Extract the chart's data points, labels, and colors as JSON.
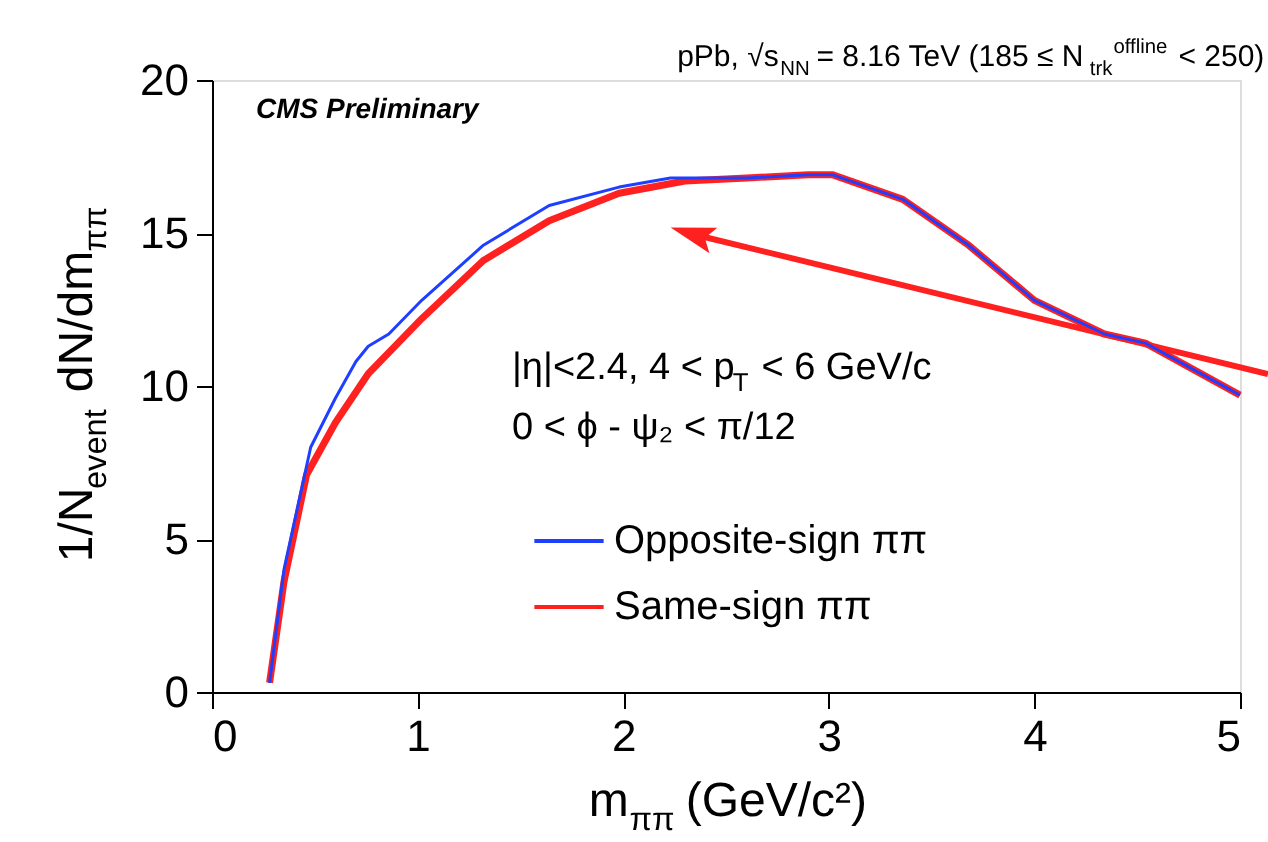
{
  "chart_data": {
    "type": "line",
    "title": "pPb, √s$_{NN}$ = 8.16 TeV (185 ≤ N$_{trk}$$^{offline}$ < 250)",
    "xlabel": "m$_{ππ}$ (GeV/c²)",
    "ylabel": "1/N$_{event}$ dN/dm$_{ππ}$",
    "annotations": [
      "CMS Preliminary",
      "|η|<2.4, 4 < p$_{T}$ < 6 GeV/c",
      "0 < ϕ - ψ₂ < π/12"
    ],
    "xlim": [
      0,
      5
    ],
    "xticks": [
      0,
      1,
      2,
      3,
      4,
      5
    ],
    "ylim": [
      0,
      20
    ],
    "yticks": [
      0,
      5,
      10,
      15,
      20
    ],
    "grid": false,
    "legend": "bottom",
    "line_style": "solid",
    "marker": "none",
    "series": [
      {
        "name": "Opposite-sign ππ",
        "color": "#1f3fff",
        "x": [
          0.28,
          0.35,
          0.48,
          0.6,
          0.7,
          0.76,
          0.86,
          1.02,
          1.32,
          1.64,
          1.98,
          2.23,
          2.6,
          2.9,
          3.02,
          3.36,
          3.68,
          4.0,
          4.34,
          4.54,
          5.0
        ],
        "values": [
          0.3,
          4.0,
          8.0,
          9.6,
          10.8,
          11.3,
          11.7,
          12.8,
          14.6,
          15.9,
          16.5,
          16.8,
          16.8,
          16.9,
          16.9,
          16.1,
          14.6,
          12.8,
          11.7,
          11.4,
          9.7
        ]
      },
      {
        "name": "Same-sign ππ",
        "color": "#ff2020",
        "x": [
          0.28,
          0.35,
          0.46,
          0.6,
          0.76,
          1.02,
          1.32,
          1.64,
          1.98,
          2.3,
          2.6,
          2.9,
          3.02,
          3.36,
          3.68,
          4.0,
          4.34,
          4.54,
          5.0
        ],
        "values": [
          0.3,
          3.6,
          7.1,
          8.8,
          10.4,
          12.2,
          14.1,
          15.4,
          16.3,
          16.7,
          16.8,
          16.9,
          16.9,
          16.1,
          14.6,
          12.8,
          11.7,
          11.4,
          9.7
        ]
      }
    ]
  }
}
